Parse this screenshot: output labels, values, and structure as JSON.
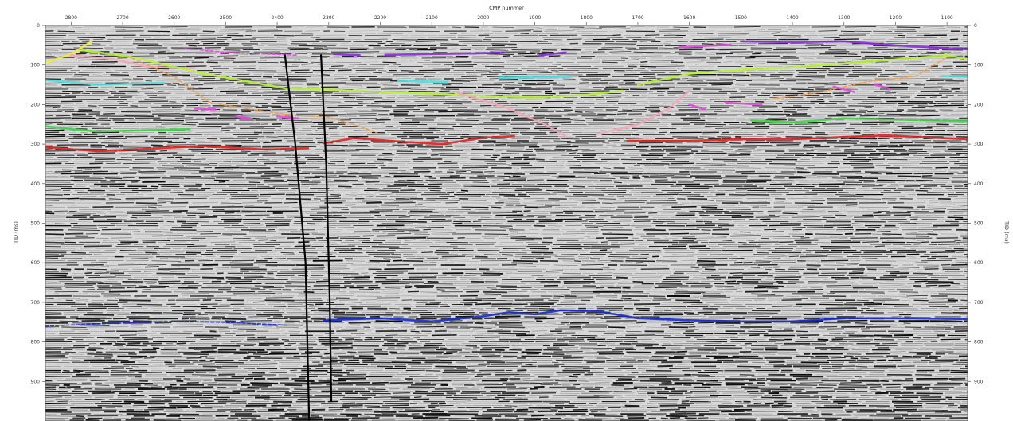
{
  "section": {
    "top_axis_title": "CMP nummer",
    "left_axis_title": "TID (ms)",
    "right_axis_title": "TID (ms)"
  },
  "colors": {
    "yellow": "#f2ee3a",
    "pink": "#f4a7b8",
    "lime": "#b8f23a",
    "cyan": "#4fe0e0",
    "green": "#3fd44a",
    "red": "#e02424",
    "orange": "#f0a050",
    "magenta": "#e04ae0",
    "purple": "#8a2be2",
    "blue": "#1a2ed0",
    "fault": "#000000"
  },
  "chart_data": {
    "type": "seismic-section",
    "xlabel": "CMP nummer",
    "ylabel": "TID (ms)",
    "xlim": [
      2850,
      1060
    ],
    "ylim": [
      0,
      1000
    ],
    "x_ticks": [
      2800,
      2700,
      2600,
      2500,
      2400,
      2300,
      2200,
      2100,
      2000,
      1900,
      1800,
      1700,
      1600,
      1500,
      1400,
      1300,
      1200,
      1100
    ],
    "y_ticks": [
      0,
      100,
      200,
      300,
      400,
      500,
      600,
      700,
      800,
      900
    ],
    "horizons": [
      {
        "color": "yellow",
        "dashed": false,
        "points": [
          [
            2850,
            95
          ],
          [
            2800,
            72
          ],
          [
            2760,
            40
          ]
        ]
      },
      {
        "color": "pink",
        "dashed": false,
        "points": [
          [
            2800,
            75
          ],
          [
            2720,
            85
          ],
          [
            2650,
            105
          ],
          [
            2560,
            108
          ]
        ]
      },
      {
        "color": "lime",
        "dashed": false,
        "points": [
          [
            2780,
            62
          ],
          [
            2680,
            80
          ],
          [
            2550,
            120
          ],
          [
            2430,
            148
          ],
          [
            2380,
            160
          ],
          [
            2300,
            162
          ],
          [
            2200,
            168
          ],
          [
            2100,
            172
          ],
          [
            2000,
            178
          ],
          [
            1900,
            182
          ],
          [
            1800,
            175
          ],
          [
            1730,
            165
          ]
        ]
      },
      {
        "color": "lime",
        "dashed": false,
        "points": [
          [
            1700,
            150
          ],
          [
            1600,
            122
          ],
          [
            1500,
            112
          ],
          [
            1400,
            106
          ],
          [
            1300,
            96
          ],
          [
            1200,
            86
          ],
          [
            1100,
            75
          ],
          [
            1060,
            85
          ]
        ]
      },
      {
        "color": "cyan",
        "dashed": false,
        "points": [
          [
            2850,
            138
          ],
          [
            2750,
            150
          ],
          [
            2620,
            145
          ]
        ]
      },
      {
        "color": "cyan",
        "dashed": false,
        "points": [
          [
            2165,
            140
          ],
          [
            2070,
            143
          ]
        ]
      },
      {
        "color": "cyan",
        "dashed": false,
        "points": [
          [
            1970,
            132
          ],
          [
            1830,
            130
          ]
        ]
      },
      {
        "color": "cyan",
        "dashed": false,
        "points": [
          [
            1110,
            128
          ],
          [
            1060,
            130
          ]
        ]
      },
      {
        "color": "green",
        "dashed": false,
        "points": [
          [
            2850,
            255
          ],
          [
            2750,
            268
          ],
          [
            2570,
            262
          ]
        ]
      },
      {
        "color": "green",
        "dashed": false,
        "points": [
          [
            1480,
            240
          ],
          [
            1400,
            245
          ],
          [
            1300,
            235
          ],
          [
            1200,
            238
          ],
          [
            1060,
            242
          ]
        ]
      },
      {
        "color": "red",
        "dashed": false,
        "points": [
          [
            2850,
            308
          ],
          [
            2750,
            318
          ],
          [
            2650,
            312
          ],
          [
            2550,
            305
          ],
          [
            2420,
            314
          ],
          [
            2340,
            310
          ]
        ]
      },
      {
        "color": "red",
        "dashed": false,
        "points": [
          [
            2310,
            298
          ],
          [
            2250,
            285
          ],
          [
            2150,
            295
          ],
          [
            2080,
            300
          ],
          [
            2000,
            284
          ],
          [
            1940,
            280
          ]
        ]
      },
      {
        "color": "red",
        "dashed": false,
        "points": [
          [
            1720,
            292
          ],
          [
            1600,
            292
          ],
          [
            1500,
            288
          ],
          [
            1400,
            288
          ],
          [
            1300,
            282
          ],
          [
            1220,
            278
          ],
          [
            1060,
            288
          ]
        ]
      },
      {
        "color": "orange",
        "dashed": true,
        "points": [
          [
            2690,
            78
          ],
          [
            2600,
            130
          ],
          [
            2530,
            195
          ],
          [
            2450,
            212
          ],
          [
            2380,
            225
          ],
          [
            2300,
            232
          ],
          [
            2240,
            255
          ],
          [
            2200,
            275
          ]
        ]
      },
      {
        "color": "orange",
        "dashed": true,
        "points": [
          [
            1550,
            186
          ],
          [
            1450,
            188
          ],
          [
            1350,
            170
          ],
          [
            1260,
            143
          ],
          [
            1160,
            128
          ],
          [
            1100,
            80
          ]
        ]
      },
      {
        "color": "pink",
        "dashed": false,
        "points": [
          [
            2050,
            170
          ],
          [
            1950,
            210
          ],
          [
            1880,
            250
          ],
          [
            1840,
            280
          ]
        ]
      },
      {
        "color": "pink",
        "dashed": false,
        "points": [
          [
            1780,
            275
          ],
          [
            1700,
            250
          ],
          [
            1640,
            210
          ],
          [
            1600,
            165
          ]
        ]
      },
      {
        "color": "magenta",
        "dashed": false,
        "points": [
          [
            2560,
            210
          ],
          [
            2520,
            212
          ]
        ]
      },
      {
        "color": "magenta",
        "dashed": false,
        "points": [
          [
            2480,
            230
          ],
          [
            2450,
            235
          ]
        ]
      },
      {
        "color": "magenta",
        "dashed": false,
        "points": [
          [
            2400,
            230
          ],
          [
            2360,
            235
          ]
        ]
      },
      {
        "color": "magenta",
        "dashed": true,
        "points": [
          [
            2580,
            58
          ],
          [
            2500,
            68
          ],
          [
            2420,
            72
          ],
          [
            2360,
            75
          ]
        ]
      },
      {
        "color": "magenta",
        "dashed": false,
        "points": [
          [
            1600,
            200
          ],
          [
            1570,
            212
          ]
        ]
      },
      {
        "color": "magenta",
        "dashed": false,
        "points": [
          [
            1530,
            195
          ],
          [
            1460,
            200
          ]
        ]
      },
      {
        "color": "magenta",
        "dashed": false,
        "points": [
          [
            1320,
            155
          ],
          [
            1280,
            168
          ]
        ]
      },
      {
        "color": "magenta",
        "dashed": false,
        "points": [
          [
            1240,
            150
          ],
          [
            1210,
            160
          ]
        ]
      },
      {
        "color": "magenta",
        "dashed": false,
        "points": [
          [
            1620,
            55
          ],
          [
            1520,
            48
          ]
        ]
      },
      {
        "color": "purple",
        "dashed": false,
        "points": [
          [
            2290,
            72
          ],
          [
            2240,
            75
          ]
        ]
      },
      {
        "color": "purple",
        "dashed": false,
        "points": [
          [
            2190,
            74
          ],
          [
            2100,
            72
          ],
          [
            2000,
            70
          ],
          [
            1960,
            68
          ]
        ]
      },
      {
        "color": "purple",
        "dashed": false,
        "points": [
          [
            1890,
            75
          ],
          [
            1840,
            68
          ]
        ]
      },
      {
        "color": "purple",
        "dashed": false,
        "points": [
          [
            1500,
            40
          ],
          [
            1400,
            42
          ],
          [
            1300,
            40
          ],
          [
            1200,
            50
          ],
          [
            1060,
            60
          ]
        ]
      },
      {
        "color": "blue",
        "dashed": true,
        "points": [
          [
            2850,
            760
          ],
          [
            2700,
            752
          ],
          [
            2600,
            748
          ],
          [
            2500,
            750
          ],
          [
            2380,
            758
          ]
        ]
      },
      {
        "color": "blue",
        "dashed": false,
        "points": [
          [
            2310,
            745
          ],
          [
            2200,
            740
          ],
          [
            2100,
            748
          ],
          [
            2000,
            735
          ],
          [
            1950,
            725
          ],
          [
            1900,
            730
          ],
          [
            1850,
            720
          ],
          [
            1780,
            722
          ],
          [
            1700,
            740
          ],
          [
            1600,
            745
          ],
          [
            1500,
            748
          ],
          [
            1400,
            748
          ],
          [
            1300,
            740
          ],
          [
            1200,
            740
          ],
          [
            1060,
            742
          ]
        ]
      }
    ],
    "faults": [
      {
        "points": [
          [
            2385,
            75
          ],
          [
            2365,
            300
          ],
          [
            2345,
            600
          ],
          [
            2338,
            1000
          ]
        ]
      },
      {
        "points": [
          [
            2315,
            75
          ],
          [
            2305,
            350
          ],
          [
            2298,
            700
          ],
          [
            2295,
            950
          ]
        ]
      }
    ]
  }
}
